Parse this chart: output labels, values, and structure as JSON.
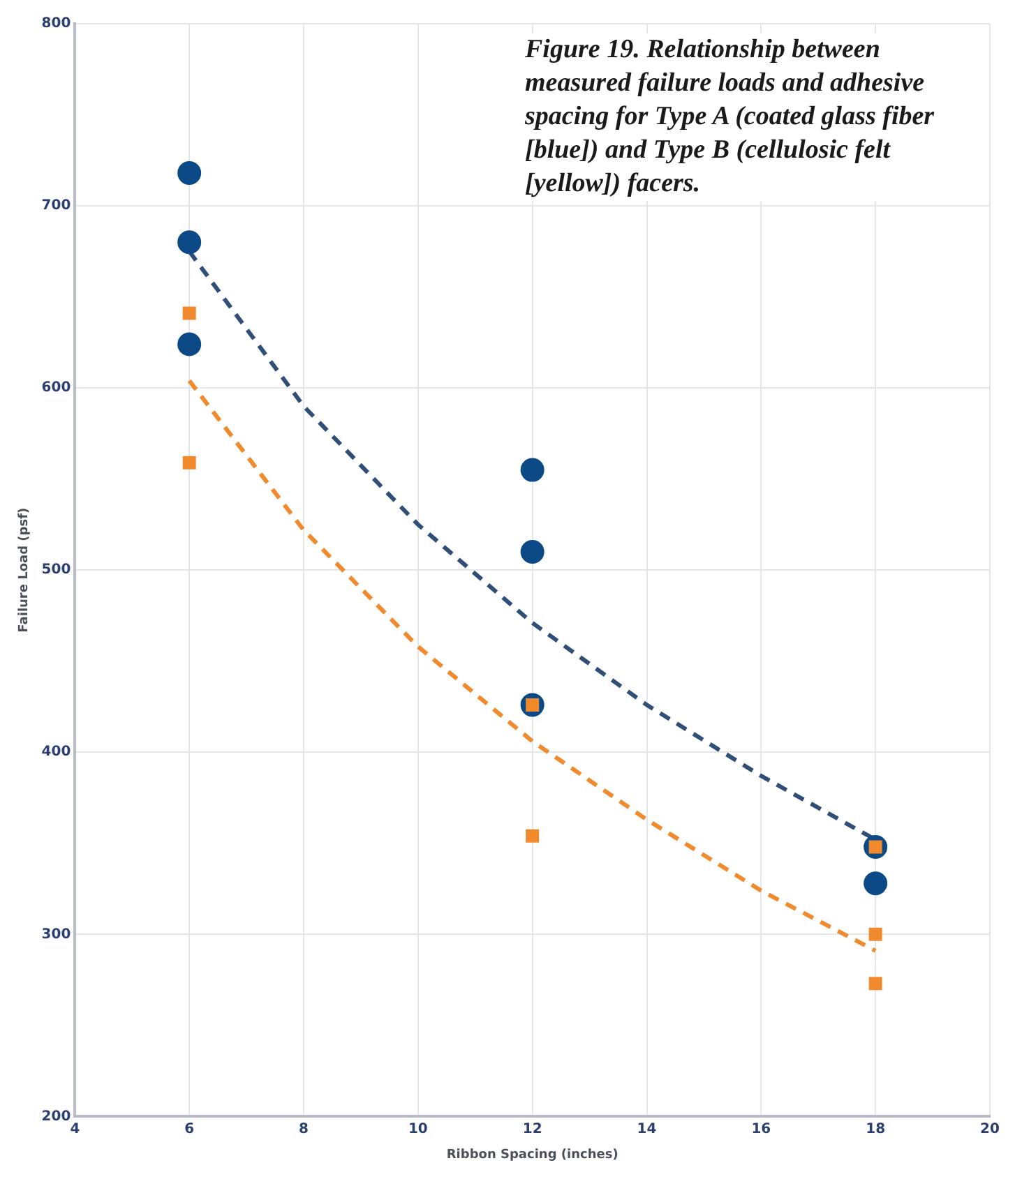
{
  "chart_data": {
    "type": "scatter",
    "title": "Figure 19. Relationship between measured failure loads and adhesive spacing for Type A (coated glass fiber [blue]) and Type B (cellulosic felt [yellow]) facers.",
    "xlabel": "Ribbon Spacing (inches)",
    "ylabel": "Failure Load (psf)",
    "xlim": [
      4,
      20
    ],
    "xticks": [
      4,
      6,
      8,
      10,
      12,
      14,
      16,
      18,
      20
    ],
    "ylim": [
      200,
      800
    ],
    "yticks": [
      200,
      300,
      400,
      500,
      600,
      700,
      800
    ],
    "grid": true,
    "legend": false,
    "series": [
      {
        "type": "scatter",
        "color": "#0b4a86",
        "marker": "circle",
        "x": [
          6,
          6,
          6,
          12,
          12,
          12,
          18,
          18
        ],
        "values": [
          718,
          680,
          624,
          555,
          510,
          426,
          348,
          328
        ]
      },
      {
        "type": "scatter",
        "color": "#f08a2c",
        "marker": "square",
        "x": [
          6,
          6,
          12,
          12,
          18,
          18,
          18
        ],
        "values": [
          641,
          559,
          426,
          354,
          348,
          300,
          273
        ]
      },
      {
        "type": "line",
        "color": "#2f4f78",
        "marker": "none",
        "line_style": "dashed",
        "x": [
          6,
          8,
          10,
          12,
          14,
          16,
          18
        ],
        "values": [
          675,
          590,
          525,
          471,
          426,
          387,
          352
        ]
      },
      {
        "type": "line",
        "color": "#f08a2c",
        "marker": "none",
        "line_style": "dashed",
        "x": [
          6,
          8,
          10,
          12,
          14,
          16,
          18
        ],
        "values": [
          604,
          522,
          458,
          406,
          363,
          324,
          291
        ]
      }
    ]
  }
}
